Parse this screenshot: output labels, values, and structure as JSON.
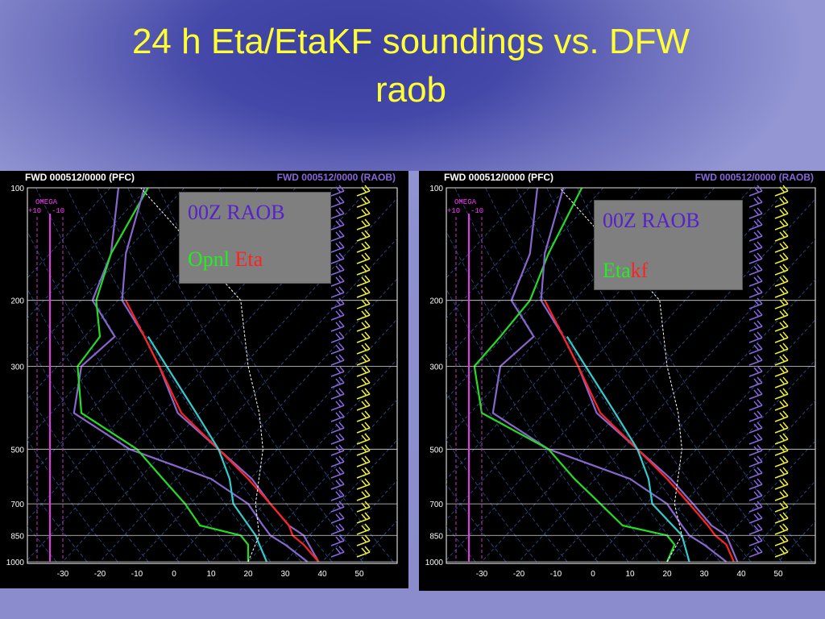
{
  "slide": {
    "title_line1": "24 h Eta/EtaKF soundings vs. DFW",
    "title_line2": "raob"
  },
  "panels": [
    {
      "header_left": "FWD  000512/0000  (PFC)",
      "header_right": "FWD  000512/0000  (RAOB)",
      "omega_label": "OMEGA",
      "omega_scale": [
        "+10",
        "-10"
      ],
      "legend_line1": "00Z RAOB",
      "legend_line2_parts": [
        "Opnl ",
        "Eta"
      ],
      "legend_line2_colors": [
        "#22ee22",
        "#ff2222"
      ]
    },
    {
      "header_left": "FWD  000512/0000  (PFC)",
      "header_right": "FWD  000512/0000  (RAOB)",
      "omega_label": "OMEGA",
      "omega_scale": [
        "+10",
        "-10"
      ],
      "legend_line1": "00Z RAOB",
      "legend_line2_parts": [
        "Eta",
        "kf"
      ],
      "legend_line2_colors": [
        "#22ee22",
        "#ff2222"
      ]
    }
  ],
  "chart_data": [
    {
      "type": "line",
      "chart": "skew-T log-P sounding",
      "pressure_ticks": [
        100,
        200,
        300,
        500,
        700,
        850,
        1000
      ],
      "temp_ticks": [
        -30,
        -20,
        -10,
        0,
        10,
        20,
        30,
        40,
        50
      ],
      "series": [
        {
          "color": "#8866cc",
          "pressure": [
            1000,
            900,
            850,
            800,
            700,
            600,
            500,
            400,
            300,
            250,
            200,
            150,
            100
          ],
          "x": [
            36,
            30,
            26,
            24,
            20,
            10,
            -12,
            -27,
            -25,
            -16,
            -22,
            -17,
            -15
          ]
        },
        {
          "color": "#22dd22",
          "pressure": [
            1000,
            900,
            850,
            800,
            700,
            600,
            500,
            400,
            300,
            250,
            200,
            150,
            100
          ],
          "x": [
            20,
            20,
            18,
            7,
            3,
            -3,
            -10,
            -25,
            -26,
            -20,
            -21,
            -17,
            -7
          ]
        },
        {
          "color": "#8866cc",
          "pressure": [
            1000,
            850,
            800,
            700,
            600,
            500,
            400,
            300,
            250,
            200,
            150,
            100
          ],
          "x": [
            39,
            35,
            31,
            26,
            21,
            12,
            1,
            -4,
            -8,
            -14,
            -13,
            -8
          ]
        },
        {
          "color": "#ff2222",
          "pressure": [
            1000,
            900,
            850,
            800,
            700,
            600,
            500,
            400,
            300,
            250,
            200
          ],
          "x": [
            39,
            35,
            32,
            31,
            26,
            20,
            12,
            2,
            -4,
            -8,
            -13
          ]
        },
        {
          "color": "#33cccc",
          "pressure": [
            1000,
            850,
            700,
            600,
            500,
            400,
            300,
            250
          ],
          "x": [
            25,
            22,
            16,
            15,
            12,
            6,
            -2,
            -7
          ]
        },
        {
          "color": "#ffffff",
          "pressure": [
            1000,
            850,
            700,
            500,
            400,
            300,
            200,
            100
          ],
          "x": [
            20,
            23,
            22,
            24,
            23,
            20,
            18,
            -9
          ]
        }
      ]
    },
    {
      "type": "line",
      "chart": "skew-T log-P sounding",
      "pressure_ticks": [
        100,
        200,
        300,
        500,
        700,
        850,
        1000
      ],
      "temp_ticks": [
        -30,
        -20,
        -10,
        0,
        10,
        20,
        30,
        40,
        50
      ],
      "series": [
        {
          "color": "#8866cc",
          "pressure": [
            1000,
            900,
            850,
            800,
            700,
            600,
            500,
            400,
            300,
            250,
            200,
            150,
            100
          ],
          "x": [
            36,
            30,
            26,
            24,
            20,
            10,
            -12,
            -27,
            -25,
            -16,
            -22,
            -17,
            -15
          ]
        },
        {
          "color": "#22dd22",
          "pressure": [
            1000,
            900,
            850,
            800,
            700,
            600,
            500,
            400,
            300,
            250,
            200,
            150,
            100
          ],
          "x": [
            20,
            22,
            20,
            8,
            2,
            -5,
            -12,
            -30,
            -32,
            -25,
            -17,
            -12,
            -3
          ]
        },
        {
          "color": "#8866cc",
          "pressure": [
            1000,
            850,
            800,
            700,
            600,
            500,
            400,
            300,
            250,
            200,
            150,
            100
          ],
          "x": [
            39,
            36,
            32,
            27,
            21,
            12,
            1,
            -4,
            -8,
            -14,
            -13,
            -8
          ]
        },
        {
          "color": "#ff2222",
          "pressure": [
            1000,
            900,
            850,
            800,
            700,
            600,
            500,
            400,
            300,
            250,
            200
          ],
          "x": [
            38,
            36,
            33,
            31,
            26,
            20,
            12,
            2,
            -4,
            -8,
            -13
          ]
        },
        {
          "color": "#33cccc",
          "pressure": [
            1000,
            850,
            700,
            600,
            500,
            400,
            300,
            250
          ],
          "x": [
            26,
            24,
            16,
            15,
            12,
            6,
            -2,
            -7
          ]
        },
        {
          "color": "#ffffff",
          "pressure": [
            1000,
            850,
            700,
            500,
            400,
            300,
            200,
            100
          ],
          "x": [
            20,
            24,
            22,
            24,
            23,
            20,
            18,
            -9
          ]
        }
      ]
    }
  ]
}
